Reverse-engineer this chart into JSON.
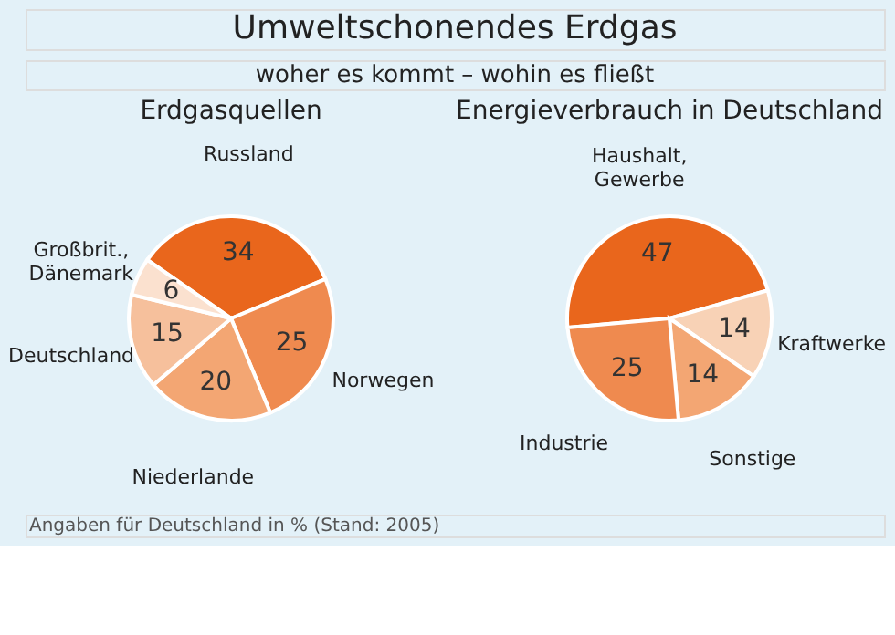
{
  "chart_data": [
    {
      "type": "pie",
      "title": "Erdgasquellen",
      "annotations": [
        "Umweltschonendes Erdgas",
        "woher es kommt – wohin es fließt"
      ],
      "categories": [
        "Russland",
        "Norwegen",
        "Niederlande",
        "Deutschland",
        "Großbrit., Dänemark"
      ],
      "values": [
        34,
        25,
        20,
        15,
        6
      ],
      "colors": [
        "#e9661c",
        "#ef8a4f",
        "#f3a673",
        "#f6c09c",
        "#fbe1cf"
      ],
      "data_labels": true,
      "legend": false
    },
    {
      "type": "pie",
      "title": "Energieverbrauch in Deutschland",
      "annotations": [
        "Angaben für Deutschland in % (Stand: 2005)"
      ],
      "categories": [
        "Haushalt, Gewerbe",
        "Kraftwerke",
        "Sonstige",
        "Industrie"
      ],
      "values": [
        47,
        14,
        14,
        25
      ],
      "colors": [
        "#e9661c",
        "#f8d2b6",
        "#f3a673",
        "#ef8a4f"
      ],
      "data_labels": true,
      "legend": false
    }
  ]
}
